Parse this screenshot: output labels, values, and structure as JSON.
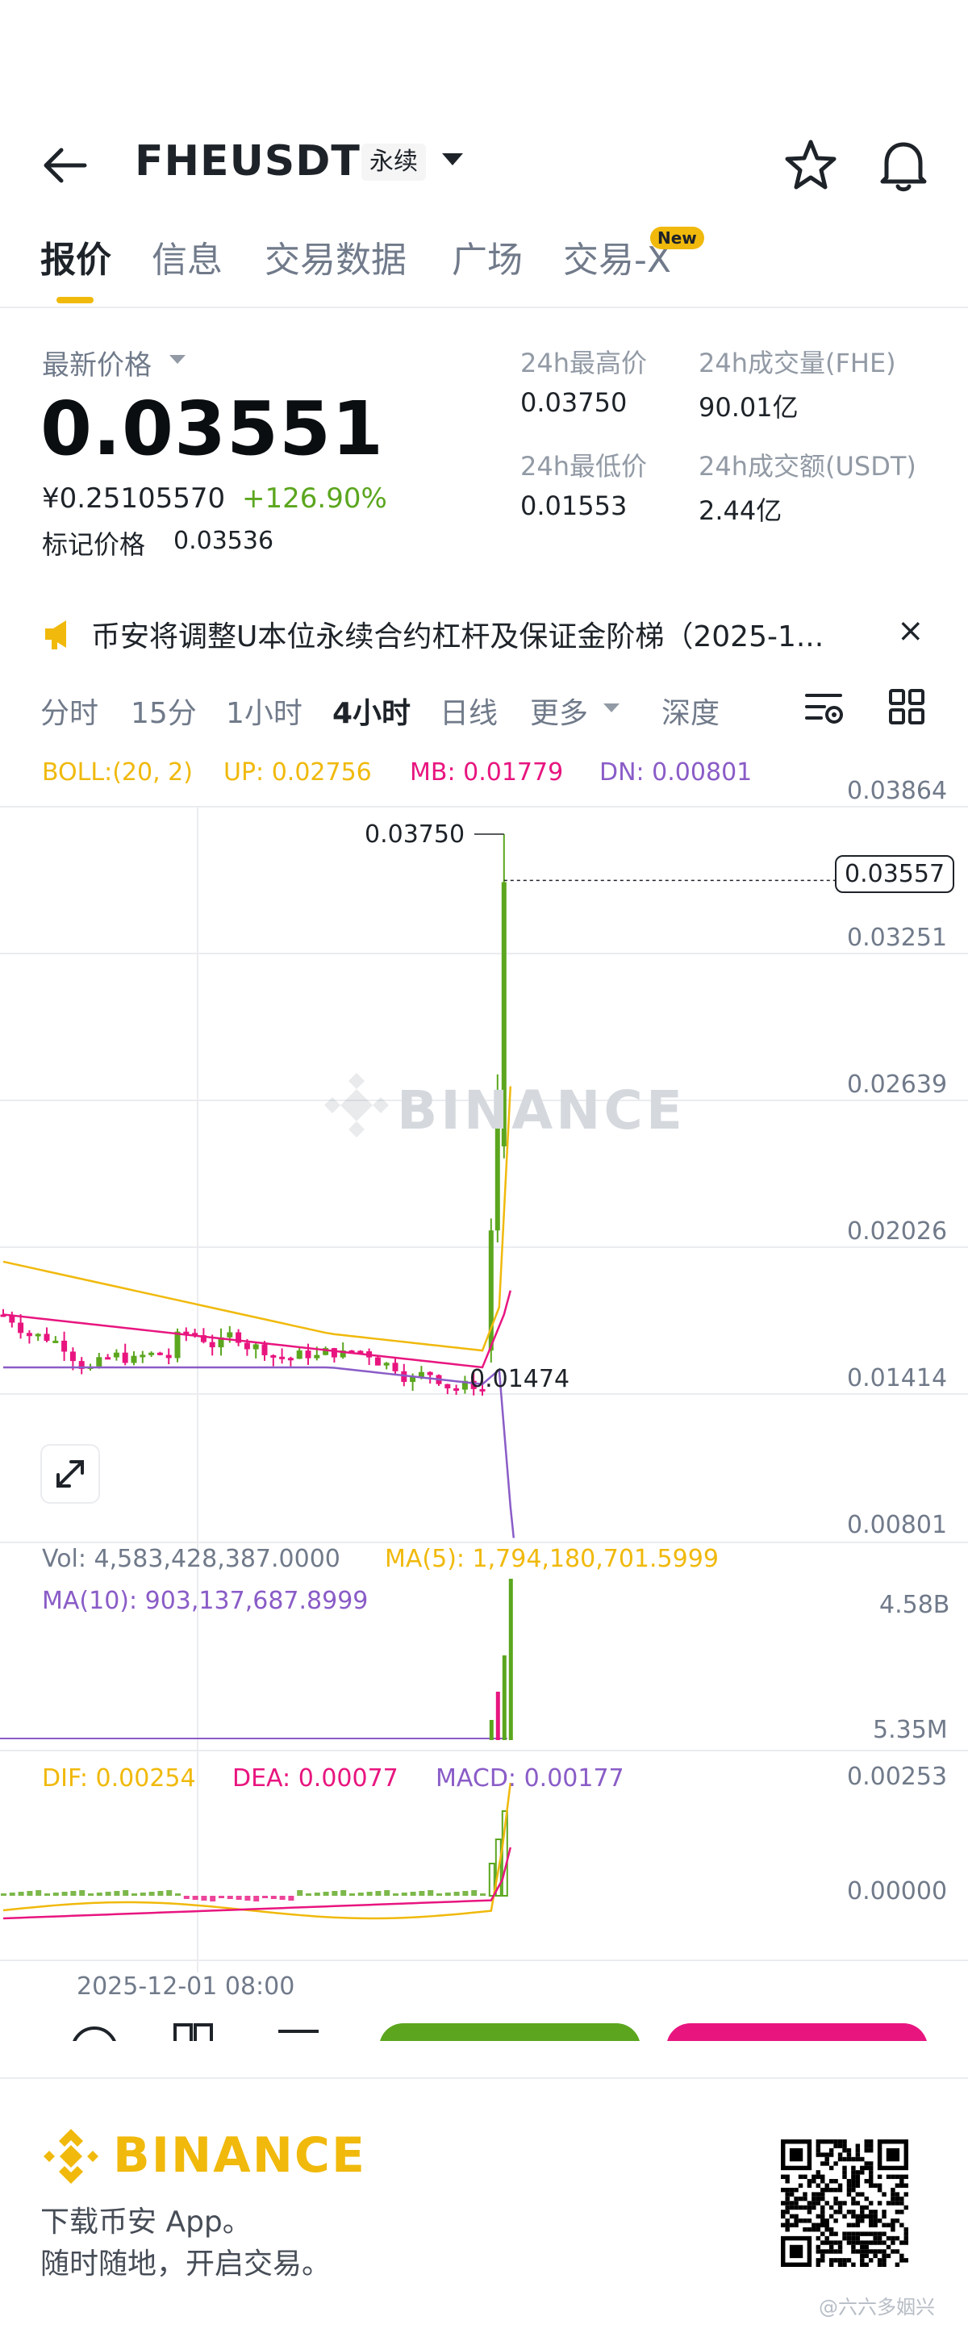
{
  "header": {
    "symbol": "FHEUSDT",
    "contract_type": "永续"
  },
  "tabs": [
    {
      "label": "报价",
      "active": true
    },
    {
      "label": "信息"
    },
    {
      "label": "交易数据"
    },
    {
      "label": "广场"
    },
    {
      "label": "交易-X",
      "badge": "New"
    }
  ],
  "ticker": {
    "latest_label": "最新价格",
    "last_price": "0.03551",
    "cny_price": "¥0.25105570",
    "change_pct": "+126.90%",
    "mark_label": "标记价格",
    "mark_price": "0.03536",
    "high_label": "24h最高价",
    "high": "0.03750",
    "low_label": "24h最低价",
    "low": "0.01553",
    "vol_label": "24h成交量(FHE)",
    "vol": "90.01亿",
    "turnover_label": "24h成交额(USDT)",
    "turnover": "2.44亿"
  },
  "notice": {
    "text": "币安将调整U本位永续合约杠杆及保证金阶梯（2025-1...",
    "close": "×"
  },
  "intervals": [
    {
      "label": "分时"
    },
    {
      "label": "15分"
    },
    {
      "label": "1小时"
    },
    {
      "label": "4小时",
      "active": true
    },
    {
      "label": "日线"
    },
    {
      "label": "更多"
    },
    {
      "label": "深度"
    }
  ],
  "indicators": {
    "boll": "BOLL:(20, 2)",
    "up": "UP: 0.02756",
    "mb": "MB: 0.01779",
    "dn": "DN: 0.00801",
    "vol": "Vol: 4,583,428,387.0000",
    "ma5": "MA(5): 1,794,180,701.5999",
    "ma10": "MA(10): 903,137,687.8999",
    "dif": "DIF: 0.00254",
    "dea": "DEA: 0.00077",
    "macd": "MACD: 0.00177"
  },
  "price_axis": [
    "0.03864",
    "0.03251",
    "0.02639",
    "0.02026",
    "0.01414",
    "0.00801"
  ],
  "current_price_tag": "0.03557",
  "max_label": "0.03750",
  "min_label": "0.01474",
  "vol_axis": [
    "4.58B",
    "5.35M"
  ],
  "macd_axis": [
    "0.00253",
    "0.00000"
  ],
  "time_label": "2025-12-01 08:00",
  "watermark": "BINANCE",
  "colors": {
    "up": "#5ba61e",
    "down": "#e8157f",
    "boll_up": "#f0b90b",
    "boll_mb": "#e8157f",
    "boll_dn": "#8a5cc7",
    "brand": "#f0b90b"
  },
  "chart_data": {
    "type": "candlestick",
    "interval": "4小时",
    "ylim": [
      0.00801,
      0.03864
    ],
    "recent": {
      "high": 0.0375,
      "low": 0.01474,
      "last": 0.03557
    }
  },
  "footer": {
    "brand": "BINANCE",
    "line1": "下载币安 App。",
    "line2": "随时随地，开启交易。",
    "credit": "@六六多姻兴"
  }
}
